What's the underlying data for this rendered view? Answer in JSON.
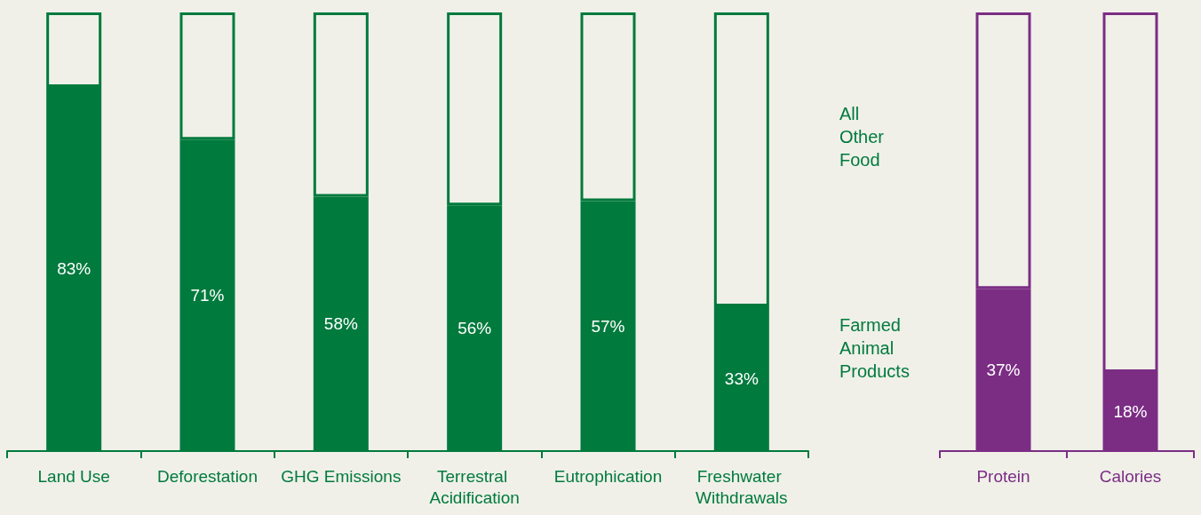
{
  "chart_data": [
    {
      "type": "bar",
      "stacked": true,
      "categories": [
        "Land Use",
        "Deforestation",
        "GHG Emissions",
        "Terrestral Acidification",
        "Eutrophication",
        "Freshwater Withdrawals"
      ],
      "legend": "right",
      "series": [
        {
          "name": "Farmed Animal Products",
          "color": "#007a3d",
          "values": [
            83,
            71,
            58,
            56,
            57,
            33
          ],
          "value_labels": [
            "83%",
            "71%",
            "58%",
            "56%",
            "57%",
            "33%"
          ]
        },
        {
          "name": "All Other Food",
          "color": "#f0f0e9",
          "values": [
            17,
            29,
            42,
            44,
            43,
            67
          ]
        }
      ]
    },
    {
      "type": "bar",
      "stacked": true,
      "categories": [
        "Protein",
        "Calories"
      ],
      "series": [
        {
          "color": "#7b2d84",
          "values": [
            37,
            18
          ],
          "value_labels": [
            "37%",
            "18%"
          ]
        },
        {
          "color": "#f0f0e9",
          "values": [
            63,
            82
          ]
        }
      ]
    }
  ]
}
